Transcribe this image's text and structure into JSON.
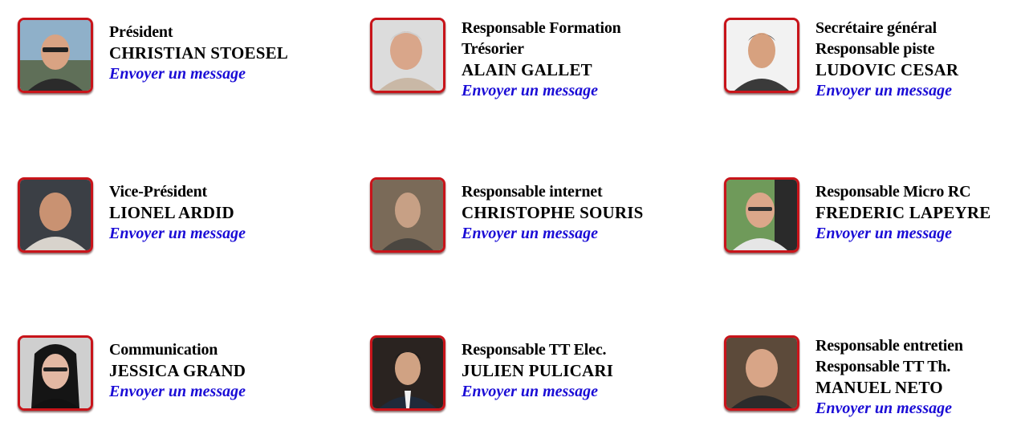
{
  "link_label": "Envoyer un message",
  "link_color": "#1a0cd6",
  "frame_color": "#c8141a",
  "members": [
    {
      "roles": [
        "Président"
      ],
      "name": "CHRISTIAN STOESEL",
      "link": "Envoyer un message"
    },
    {
      "roles": [
        "Responsable Formation",
        "Trésorier"
      ],
      "name": "ALAIN GALLET",
      "link": "Envoyer un message"
    },
    {
      "roles": [
        "Secrétaire général",
        "Responsable piste"
      ],
      "name": "LUDOVIC CESAR",
      "link": "Envoyer un message"
    },
    {
      "roles": [
        "Vice-Président"
      ],
      "name": "LIONEL ARDID",
      "link": "Envoyer un message"
    },
    {
      "roles": [
        "Responsable internet"
      ],
      "name": "CHRISTOPHE SOURIS",
      "link": "Envoyer un message"
    },
    {
      "roles": [
        "Responsable Micro RC"
      ],
      "name": "FREDERIC LAPEYRE",
      "link": "Envoyer un message"
    },
    {
      "roles": [
        "Communication"
      ],
      "name": "JESSICA GRAND",
      "link": "Envoyer un message"
    },
    {
      "roles": [
        "Responsable TT Elec."
      ],
      "name": "JULIEN PULICARI",
      "link": "Envoyer un message"
    },
    {
      "roles": [
        "Responsable entretien",
        "Responsable TT Th."
      ],
      "name": "MANUEL NETO",
      "link": "Envoyer un message"
    }
  ]
}
